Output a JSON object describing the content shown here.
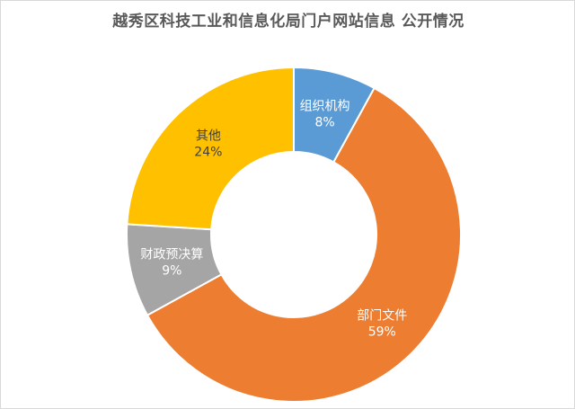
{
  "chart_data": {
    "type": "pie",
    "subtype": "doughnut",
    "title": "越秀区科技工业和信息化局门户网站信息 公开情况",
    "categories": [
      "组织机构",
      "部门文件",
      "财政预决算",
      "其他"
    ],
    "values": [
      8,
      59,
      9,
      24
    ],
    "value_labels": [
      "8%",
      "59%",
      "9%",
      "24%"
    ],
    "colors": [
      "#5b9bd5",
      "#ed7d31",
      "#a5a5a5",
      "#ffc000"
    ],
    "legend": "none",
    "label_position": "on-slice"
  }
}
